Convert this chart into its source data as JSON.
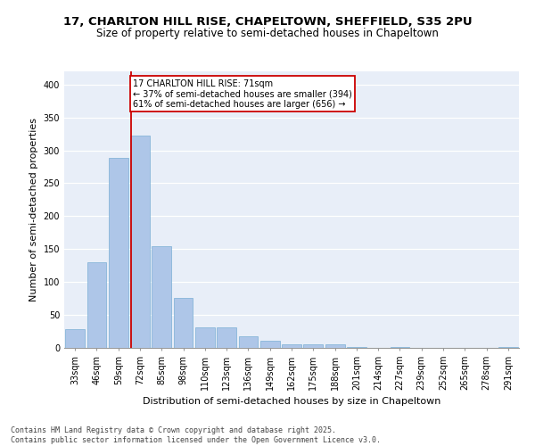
{
  "title_line1": "17, CHARLTON HILL RISE, CHAPELTOWN, SHEFFIELD, S35 2PU",
  "title_line2": "Size of property relative to semi-detached houses in Chapeltown",
  "xlabel": "Distribution of semi-detached houses by size in Chapeltown",
  "ylabel": "Number of semi-detached properties",
  "categories": [
    "33sqm",
    "46sqm",
    "59sqm",
    "72sqm",
    "85sqm",
    "98sqm",
    "110sqm",
    "123sqm",
    "136sqm",
    "149sqm",
    "162sqm",
    "175sqm",
    "188sqm",
    "201sqm",
    "214sqm",
    "227sqm",
    "239sqm",
    "252sqm",
    "265sqm",
    "278sqm",
    "291sqm"
  ],
  "values": [
    29,
    130,
    289,
    322,
    155,
    76,
    31,
    31,
    18,
    11,
    5,
    6,
    6,
    2,
    0,
    1,
    0,
    0,
    0,
    0,
    2
  ],
  "bar_color": "#aec6e8",
  "bar_edge_color": "#7aafd4",
  "vline_color": "#cc0000",
  "annotation_title": "17 CHARLTON HILL RISE: 71sqm",
  "annotation_line1": "← 37% of semi-detached houses are smaller (394)",
  "annotation_line2": "61% of semi-detached houses are larger (656) →",
  "annotation_box_color": "#cc0000",
  "ylim": [
    0,
    420
  ],
  "yticks": [
    0,
    50,
    100,
    150,
    200,
    250,
    300,
    350,
    400
  ],
  "background_color": "#e8eef8",
  "footer_line1": "Contains HM Land Registry data © Crown copyright and database right 2025.",
  "footer_line2": "Contains public sector information licensed under the Open Government Licence v3.0.",
  "title_fontsize": 9.5,
  "subtitle_fontsize": 8.5,
  "axis_label_fontsize": 8,
  "tick_fontsize": 7,
  "annotation_fontsize": 7,
  "footer_fontsize": 6
}
